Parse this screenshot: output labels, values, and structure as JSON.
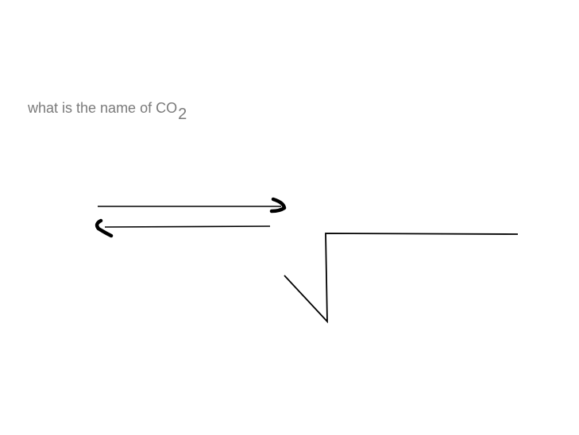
{
  "question": {
    "text": "what is the name of CO",
    "subscript": "2"
  },
  "strokes": {
    "color": "#000000",
    "items": [
      "right-arrow",
      "left-arrow",
      "square-root-sign"
    ]
  }
}
